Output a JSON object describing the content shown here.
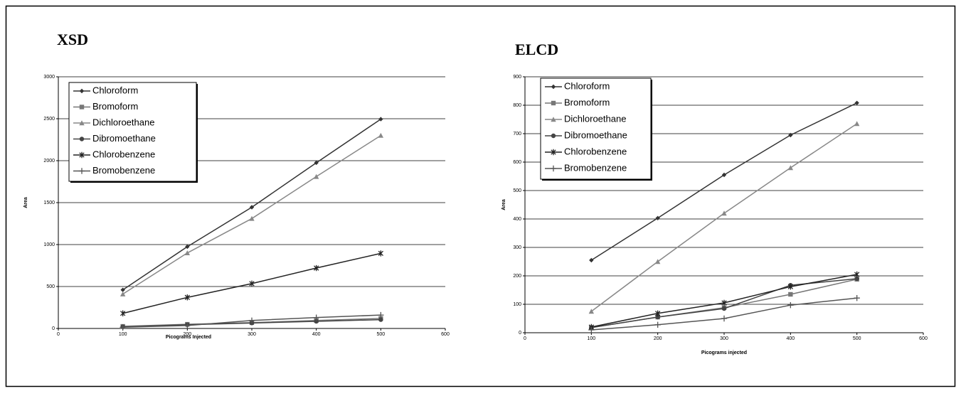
{
  "chart_data": [
    {
      "type": "line",
      "title": "XSD",
      "xlabel": "Picograms Injected",
      "ylabel": "Area",
      "x": [
        100,
        200,
        300,
        400,
        500
      ],
      "xlim": [
        0,
        600
      ],
      "xticks": [
        0,
        100,
        200,
        300,
        400,
        500,
        600
      ],
      "ylim": [
        0,
        3000
      ],
      "yticks": [
        0,
        500,
        1000,
        1500,
        2000,
        2500,
        3000
      ],
      "grid": true,
      "legend": "upper left",
      "series": [
        {
          "name": "Chloroform",
          "color": "#333333",
          "marker": "diamond",
          "values": [
            460,
            975,
            1445,
            1975,
            2495
          ]
        },
        {
          "name": "Bromoform",
          "color": "#777777",
          "marker": "square",
          "values": [
            25,
            50,
            70,
            95,
            120
          ]
        },
        {
          "name": "Dichloroethane",
          "color": "#888888",
          "marker": "triangle",
          "values": [
            410,
            900,
            1310,
            1810,
            2300
          ]
        },
        {
          "name": "Dibromoethane",
          "color": "#444444",
          "marker": "circle",
          "values": [
            20,
            45,
            65,
            85,
            105
          ]
        },
        {
          "name": "Chlorobenzene",
          "color": "#222222",
          "marker": "star",
          "values": [
            180,
            370,
            535,
            720,
            895
          ]
        },
        {
          "name": "Bromobenzene",
          "color": "#555555",
          "marker": "plus",
          "values": [
            15,
            35,
            95,
            130,
            160
          ]
        }
      ]
    },
    {
      "type": "line",
      "title": "ELCD",
      "xlabel": "Picograms injected",
      "ylabel": "Area",
      "x": [
        100,
        200,
        300,
        400,
        500
      ],
      "xlim": [
        0,
        600
      ],
      "xticks": [
        0,
        100,
        200,
        300,
        400,
        500,
        600
      ],
      "ylim": [
        0,
        900
      ],
      "yticks": [
        0,
        100,
        200,
        300,
        400,
        500,
        600,
        700,
        800,
        900
      ],
      "grid": true,
      "legend": "upper left",
      "series": [
        {
          "name": "Chloroform",
          "color": "#333333",
          "marker": "diamond",
          "values": [
            255,
            403,
            555,
            695,
            808
          ]
        },
        {
          "name": "Bromoform",
          "color": "#777777",
          "marker": "square",
          "values": [
            18,
            55,
            88,
            135,
            188
          ]
        },
        {
          "name": "Dichloroethane",
          "color": "#888888",
          "marker": "triangle",
          "values": [
            75,
            250,
            420,
            580,
            735
          ]
        },
        {
          "name": "Dibromoethane",
          "color": "#444444",
          "marker": "circle",
          "values": [
            18,
            55,
            85,
            167,
            190
          ]
        },
        {
          "name": "Chlorobenzene",
          "color": "#222222",
          "marker": "star",
          "values": [
            20,
            68,
            105,
            162,
            205
          ]
        },
        {
          "name": "Bromobenzene",
          "color": "#555555",
          "marker": "plus",
          "values": [
            10,
            28,
            50,
            97,
            122
          ]
        }
      ]
    }
  ]
}
